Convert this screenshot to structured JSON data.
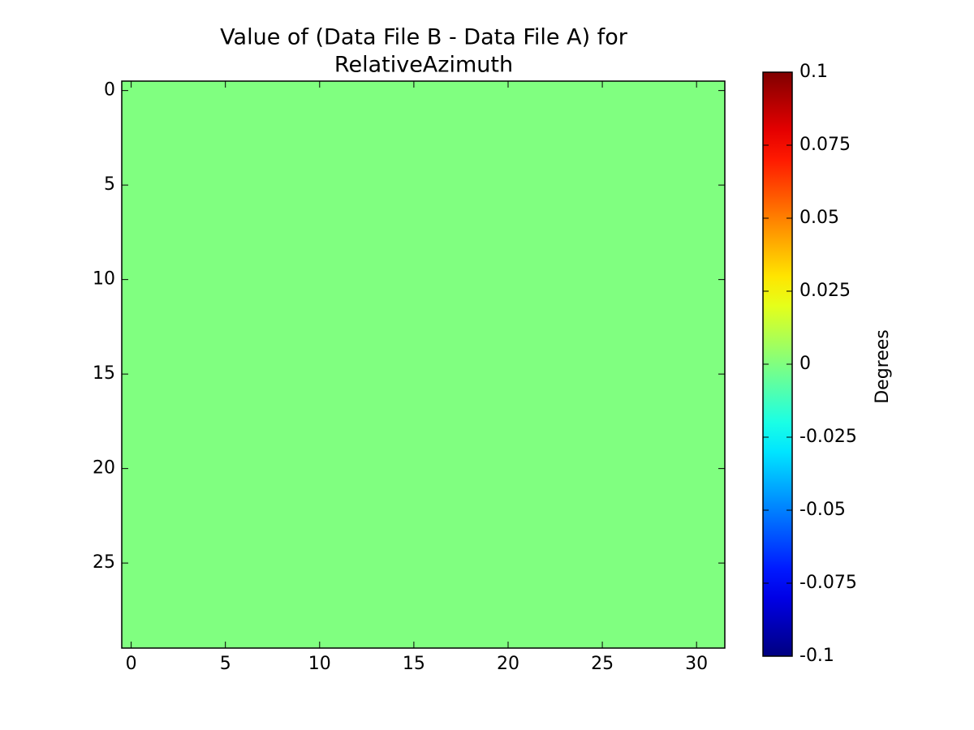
{
  "chart_data": {
    "type": "heatmap",
    "title": [
      "Value of (Data File B - Data File A) for",
      "RelativeAzimuth"
    ],
    "colorbar_label": "Degrees",
    "colormap": "jet",
    "clim": [
      -0.1,
      0.1
    ],
    "cticks": [
      -0.1,
      -0.075,
      -0.05,
      -0.025,
      0,
      0.025,
      0.05,
      0.075,
      0.1
    ],
    "xlim": [
      -0.5,
      31.5
    ],
    "xticks": [
      0,
      5,
      10,
      15,
      20,
      25,
      30
    ],
    "ylim": [
      -0.5,
      29.5
    ],
    "y_inverted": true,
    "yticks": [
      0,
      5,
      10,
      15,
      20,
      25
    ],
    "values": [
      [
        0,
        0,
        0,
        0,
        0,
        0,
        0,
        0,
        0,
        0,
        0,
        0,
        0,
        0,
        0,
        0,
        0,
        0,
        0,
        0,
        0,
        0,
        0,
        0,
        0,
        0,
        0,
        0,
        0,
        0,
        0,
        0
      ],
      [
        0,
        0,
        0,
        0,
        0,
        0,
        0,
        0,
        0,
        0,
        0,
        0,
        0,
        0,
        0,
        0,
        0,
        0,
        0,
        0,
        0,
        0,
        0,
        0,
        0,
        0,
        0,
        0,
        0,
        0,
        0,
        0
      ],
      [
        0,
        0,
        0,
        0,
        0,
        0,
        0,
        0,
        0,
        0,
        0,
        0,
        0,
        0,
        0,
        0,
        0,
        0,
        0,
        0,
        0,
        0,
        0,
        0,
        0,
        0,
        0,
        0,
        0,
        0,
        0,
        0
      ],
      [
        0,
        0,
        0,
        0,
        0,
        0,
        0,
        0,
        0,
        0,
        0,
        0,
        0,
        0,
        0,
        0,
        0,
        0,
        0,
        0,
        0,
        0,
        0,
        0,
        0,
        0,
        0,
        0,
        0,
        0,
        0,
        0
      ],
      [
        0,
        0,
        0,
        0,
        0,
        0,
        0,
        0,
        0,
        0,
        0,
        0,
        0,
        0,
        0,
        0,
        0,
        0,
        0,
        0,
        0,
        0,
        0,
        0,
        0,
        0,
        0,
        0,
        0,
        0,
        0,
        0
      ],
      [
        0,
        0,
        0,
        0,
        0,
        0,
        0,
        0,
        0,
        0,
        0,
        0,
        0,
        0,
        0,
        0,
        0,
        0,
        0,
        0,
        0,
        0,
        0,
        0,
        0,
        0,
        0,
        0,
        0,
        0,
        0,
        0
      ],
      [
        0,
        0,
        0,
        0,
        0,
        0,
        0,
        0,
        0,
        0,
        0,
        0,
        0,
        0,
        0,
        0,
        0,
        0,
        0,
        0,
        0,
        0,
        0,
        0,
        0,
        0,
        0,
        0,
        0,
        0,
        0,
        0
      ],
      [
        0,
        0,
        0,
        0,
        0,
        0,
        0,
        0,
        0,
        0,
        0,
        0,
        0,
        0,
        0,
        0,
        0,
        0,
        0,
        0,
        0,
        0,
        0,
        0,
        0,
        0,
        0,
        0,
        0,
        0,
        0,
        0
      ],
      [
        0,
        0,
        0,
        0,
        0,
        0,
        0,
        0,
        0,
        0,
        0,
        0,
        0,
        0,
        0,
        0,
        0,
        0,
        0,
        0,
        0,
        0,
        0,
        0,
        0,
        0,
        0,
        0,
        0,
        0,
        0,
        0
      ],
      [
        0,
        0,
        0,
        0,
        0,
        0,
        0,
        0,
        0,
        0,
        0,
        0,
        0,
        0,
        0,
        0,
        0,
        0,
        0,
        0,
        0,
        0,
        0,
        0,
        0,
        0,
        0,
        0,
        0,
        0,
        0,
        0
      ],
      [
        0,
        0,
        0,
        0,
        0,
        0,
        0,
        0,
        0,
        0,
        0,
        0,
        0,
        0,
        0,
        0,
        0,
        0,
        0,
        0,
        0,
        0,
        0,
        0,
        0,
        0,
        0,
        0,
        0,
        0,
        0,
        0
      ],
      [
        0,
        0,
        0,
        0,
        0,
        0,
        0,
        0,
        0,
        0,
        0,
        0,
        0,
        0,
        0,
        0,
        0,
        0,
        0,
        0,
        0,
        0,
        0,
        0,
        0,
        0,
        0,
        0,
        0,
        0,
        0,
        0
      ],
      [
        0,
        0,
        0,
        0,
        0,
        0,
        0,
        0,
        0,
        0,
        0,
        0,
        0,
        0,
        0,
        0,
        0,
        0,
        0,
        0,
        0,
        0,
        0,
        0,
        0,
        0,
        0,
        0,
        0,
        0,
        0,
        0
      ],
      [
        0,
        0,
        0,
        0,
        0,
        0,
        0,
        0,
        0,
        0,
        0,
        0,
        0,
        0,
        0,
        0,
        0,
        0,
        0,
        0,
        0,
        0,
        0,
        0,
        0,
        0,
        0,
        0,
        0,
        0,
        0,
        0
      ],
      [
        0,
        0,
        0,
        0,
        0,
        0,
        0,
        0,
        0,
        0,
        0,
        0,
        0,
        0,
        0,
        0,
        0,
        0,
        0,
        0,
        0,
        0,
        0,
        0,
        0,
        0,
        0,
        0,
        0,
        0,
        0,
        0
      ],
      [
        0,
        0,
        0,
        0,
        0,
        0,
        0,
        0,
        0,
        0,
        0,
        0,
        0,
        0,
        0,
        0,
        0,
        0,
        0,
        0,
        0,
        0,
        0,
        0,
        0,
        0,
        0,
        0,
        0,
        0,
        0,
        0
      ],
      [
        0,
        0,
        0,
        0,
        0,
        0,
        0,
        0,
        0,
        0,
        0,
        0,
        0,
        0,
        0,
        0,
        0,
        0,
        0,
        0,
        0,
        0,
        0,
        0,
        0,
        0,
        0,
        0,
        0,
        0,
        0,
        0
      ],
      [
        0,
        0,
        0,
        0,
        0,
        0,
        0,
        0,
        0,
        0,
        0,
        0,
        0,
        0,
        0,
        0,
        0,
        0,
        0,
        0,
        0,
        0,
        0,
        0,
        0,
        0,
        0,
        0,
        0,
        0,
        0,
        0
      ],
      [
        0,
        0,
        0,
        0,
        0,
        0,
        0,
        0,
        0,
        0,
        0,
        0,
        0,
        0,
        0,
        0,
        0,
        0,
        0,
        0,
        0,
        0,
        0,
        0,
        0,
        0,
        0,
        0,
        0,
        0,
        0,
        0
      ],
      [
        0,
        0,
        0,
        0,
        0,
        0,
        0,
        0,
        0,
        0,
        0,
        0,
        0,
        0,
        0,
        0,
        0,
        0,
        0,
        0,
        0,
        0,
        0,
        0,
        0,
        0,
        0,
        0,
        0,
        0,
        0,
        0
      ],
      [
        0,
        0,
        0,
        0,
        0,
        0,
        0,
        0,
        0,
        0,
        0,
        0,
        0,
        0,
        0,
        0,
        0,
        0,
        0,
        0,
        0,
        0,
        0,
        0,
        0,
        0,
        0,
        0,
        0,
        0,
        0,
        0
      ],
      [
        0,
        0,
        0,
        0,
        0,
        0,
        0,
        0,
        0,
        0,
        0,
        0,
        0,
        0,
        0,
        0,
        0,
        0,
        0,
        0,
        0,
        0,
        0,
        0,
        0,
        0,
        0,
        0,
        0,
        0,
        0,
        0
      ],
      [
        0,
        0,
        0,
        0,
        0,
        0,
        0,
        0,
        0,
        0,
        0,
        0,
        0,
        0,
        0,
        0,
        0,
        0,
        0,
        0,
        0,
        0,
        0,
        0,
        0,
        0,
        0,
        0,
        0,
        0,
        0,
        0
      ],
      [
        0,
        0,
        0,
        0,
        0,
        0,
        0,
        0,
        0,
        0,
        0,
        0,
        0,
        0,
        0,
        0,
        0,
        0,
        0,
        0,
        0,
        0,
        0,
        0,
        0,
        0,
        0,
        0,
        0,
        0,
        0,
        0
      ],
      [
        0,
        0,
        0,
        0,
        0,
        0,
        0,
        0,
        0,
        0,
        0,
        0,
        0,
        0,
        0,
        0,
        0,
        0,
        0,
        0,
        0,
        0,
        0,
        0,
        0,
        0,
        0,
        0,
        0,
        0,
        0,
        0
      ],
      [
        0,
        0,
        0,
        0,
        0,
        0,
        0,
        0,
        0,
        0,
        0,
        0,
        0,
        0,
        0,
        0,
        0,
        0,
        0,
        0,
        0,
        0,
        0,
        0,
        0,
        0,
        0,
        0,
        0,
        0,
        0,
        0
      ],
      [
        0,
        0,
        0,
        0,
        0,
        0,
        0,
        0,
        0,
        0,
        0,
        0,
        0,
        0,
        0,
        0,
        0,
        0,
        0,
        0,
        0,
        0,
        0,
        0,
        0,
        0,
        0,
        0,
        0,
        0,
        0,
        0
      ],
      [
        0,
        0,
        0,
        0,
        0,
        0,
        0,
        0,
        0,
        0,
        0,
        0,
        0,
        0,
        0,
        0,
        0,
        0,
        0,
        0,
        0,
        0,
        0,
        0,
        0,
        0,
        0,
        0,
        0,
        0,
        0,
        0
      ],
      [
        0,
        0,
        0,
        0,
        0,
        0,
        0,
        0,
        0,
        0,
        0,
        0,
        0,
        0,
        0,
        0,
        0,
        0,
        0,
        0,
        0,
        0,
        0,
        0,
        0,
        0,
        0,
        0,
        0,
        0,
        0,
        0
      ],
      [
        0,
        0,
        0,
        0,
        0,
        0,
        0,
        0,
        0,
        0,
        0,
        0,
        0,
        0,
        0,
        0,
        0,
        0,
        0,
        0,
        0,
        0,
        0,
        0,
        0,
        0,
        0,
        0,
        0,
        0,
        0,
        0
      ]
    ]
  }
}
